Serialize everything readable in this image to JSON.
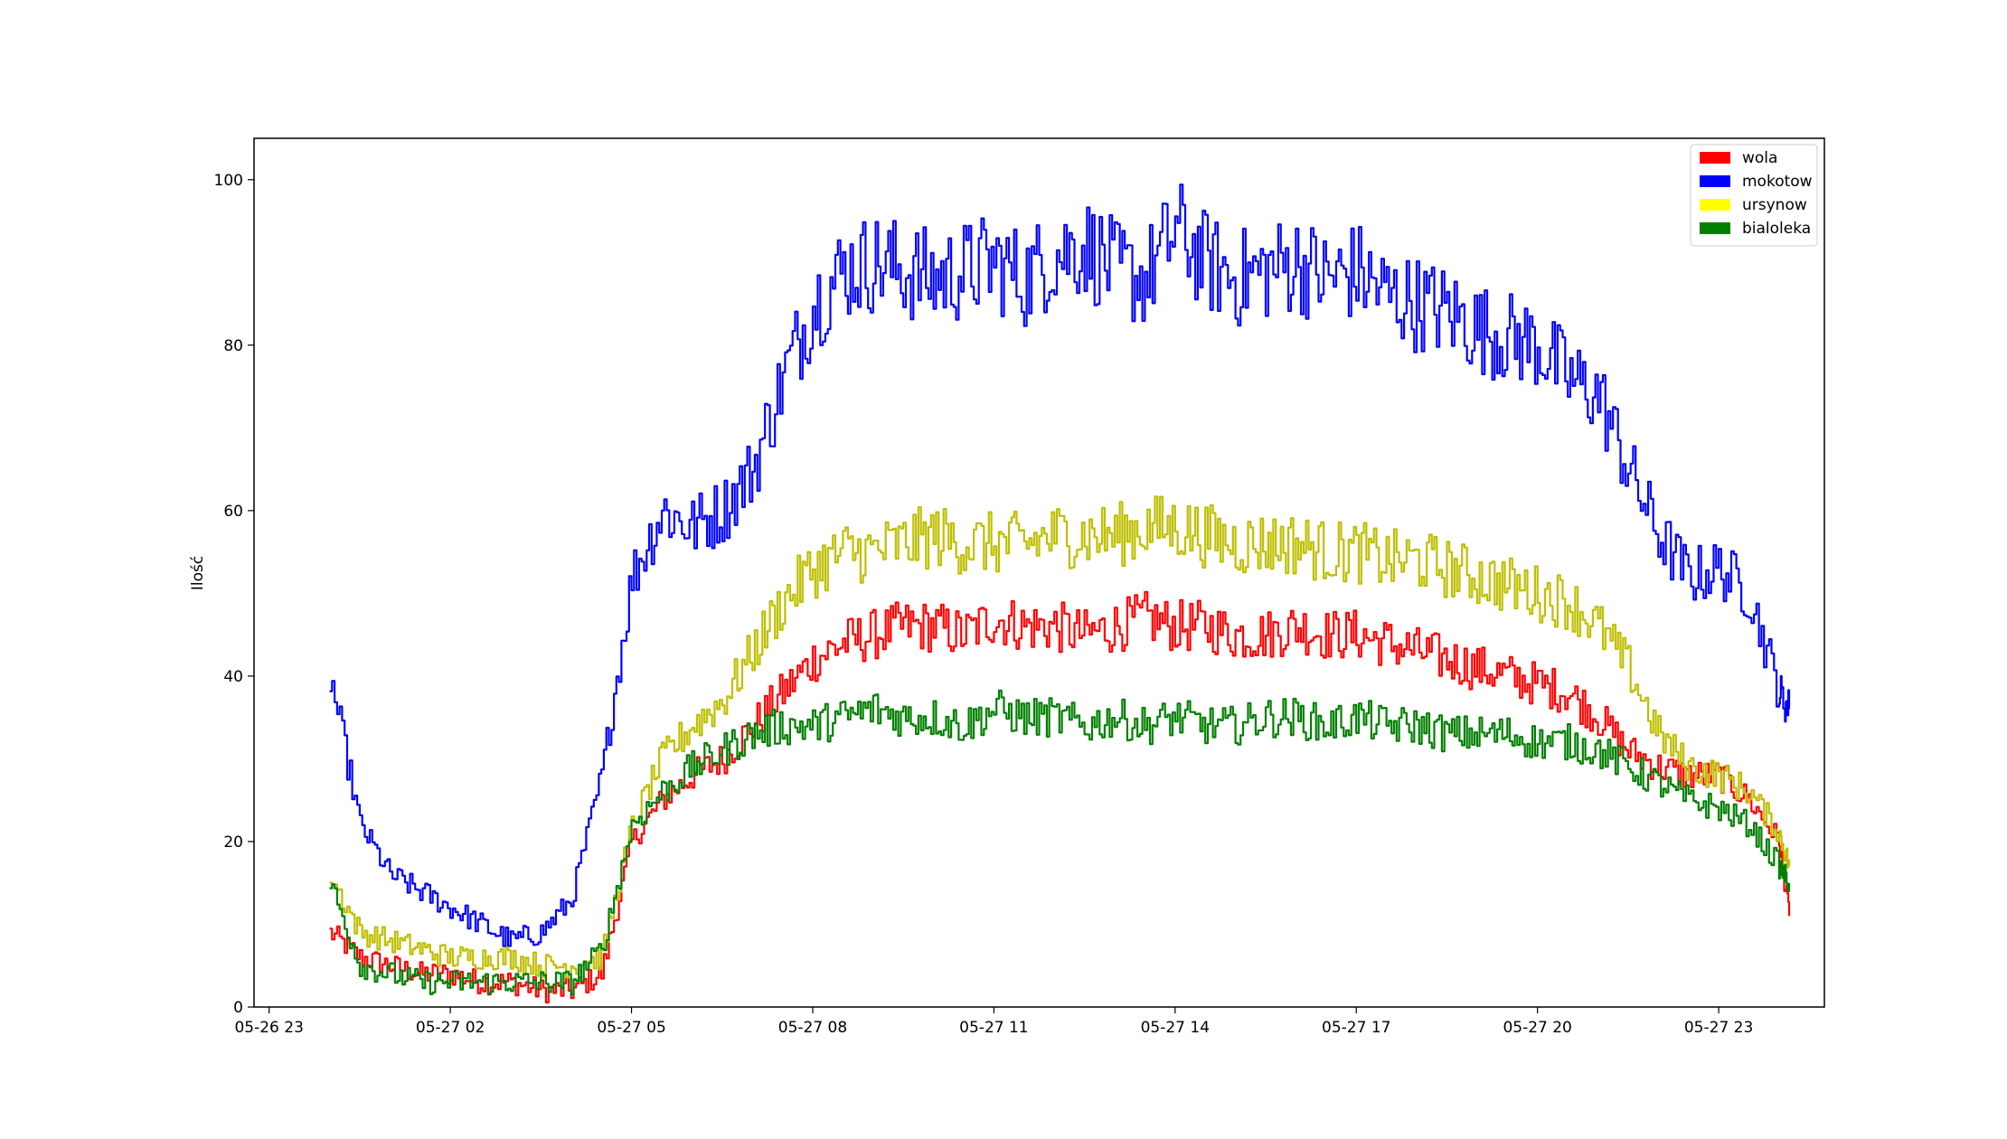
{
  "chart_data": {
    "type": "line",
    "title": "",
    "xlabel": "",
    "ylabel": "Ilość",
    "x_range": [
      "2026-05-26T22:45",
      "2026-05-28T00:45"
    ],
    "ylim": [
      0,
      105
    ],
    "x_ticks": [
      {
        "t": "2026-05-26T23:00",
        "label": "05-26 23"
      },
      {
        "t": "2026-05-27T02:00",
        "label": "05-27 02"
      },
      {
        "t": "2026-05-27T05:00",
        "label": "05-27 05"
      },
      {
        "t": "2026-05-27T08:00",
        "label": "05-27 08"
      },
      {
        "t": "2026-05-27T11:00",
        "label": "05-27 11"
      },
      {
        "t": "2026-05-27T14:00",
        "label": "05-27 14"
      },
      {
        "t": "2026-05-27T17:00",
        "label": "05-27 17"
      },
      {
        "t": "2026-05-27T20:00",
        "label": "05-27 20"
      },
      {
        "t": "2026-05-27T23:00",
        "label": "05-27 23"
      }
    ],
    "y_ticks": [
      0,
      20,
      40,
      60,
      80,
      100
    ],
    "grid": false,
    "legend_position": "top-right",
    "series": [
      {
        "name": "wola",
        "color": "#ff0000",
        "legend_color": "#ff0000",
        "x": [
          "2026-05-27T00:00",
          "2026-05-27T00:30",
          "2026-05-27T01:00",
          "2026-05-27T01:30",
          "2026-05-27T02:00",
          "2026-05-27T02:30",
          "2026-05-27T03:00",
          "2026-05-27T03:30",
          "2026-05-27T04:00",
          "2026-05-27T04:30",
          "2026-05-27T05:00",
          "2026-05-27T05:30",
          "2026-05-27T06:00",
          "2026-05-27T06:30",
          "2026-05-27T07:00",
          "2026-05-27T07:30",
          "2026-05-27T08:00",
          "2026-05-27T08:30",
          "2026-05-27T09:00",
          "2026-05-27T09:30",
          "2026-05-27T10:00",
          "2026-05-27T10:30",
          "2026-05-27T11:00",
          "2026-05-27T11:30",
          "2026-05-27T12:00",
          "2026-05-27T12:30",
          "2026-05-27T13:00",
          "2026-05-27T13:30",
          "2026-05-27T14:00",
          "2026-05-27T14:30",
          "2026-05-27T15:00",
          "2026-05-27T15:30",
          "2026-05-27T16:00",
          "2026-05-27T16:30",
          "2026-05-27T17:00",
          "2026-05-27T17:30",
          "2026-05-27T18:00",
          "2026-05-27T18:30",
          "2026-05-27T19:00",
          "2026-05-27T19:30",
          "2026-05-27T20:00",
          "2026-05-27T20:30",
          "2026-05-27T21:00",
          "2026-05-27T21:30",
          "2026-05-27T22:00",
          "2026-05-27T22:30",
          "2026-05-27T23:00",
          "2026-05-27T23:30",
          "2026-05-28T00:00",
          "2026-05-28T00:10"
        ],
        "values": [
          9,
          6,
          5,
          4,
          4,
          3,
          3,
          2,
          2,
          4,
          20,
          25,
          28,
          30,
          34,
          38,
          42,
          44,
          45,
          46,
          46,
          45,
          47,
          46,
          46,
          45,
          46,
          47,
          46,
          46,
          45,
          45,
          46,
          45,
          45,
          44,
          43,
          42,
          41,
          40,
          39,
          38,
          35,
          31,
          29,
          28,
          28,
          25,
          20,
          11
        ]
      },
      {
        "name": "mokotow",
        "color": "#0000ff",
        "legend_color": "#0000ff",
        "x": [
          "2026-05-27T00:00",
          "2026-05-27T00:30",
          "2026-05-27T01:00",
          "2026-05-27T01:30",
          "2026-05-27T02:00",
          "2026-05-27T02:30",
          "2026-05-27T03:00",
          "2026-05-27T03:30",
          "2026-05-27T04:00",
          "2026-05-27T04:30",
          "2026-05-27T05:00",
          "2026-05-27T05:30",
          "2026-05-27T06:00",
          "2026-05-27T06:30",
          "2026-05-27T07:00",
          "2026-05-27T07:30",
          "2026-05-27T08:00",
          "2026-05-27T08:30",
          "2026-05-27T09:00",
          "2026-05-27T09:30",
          "2026-05-27T10:00",
          "2026-05-27T10:30",
          "2026-05-27T11:00",
          "2026-05-27T11:30",
          "2026-05-27T12:00",
          "2026-05-27T12:30",
          "2026-05-27T13:00",
          "2026-05-27T13:30",
          "2026-05-27T14:00",
          "2026-05-27T14:30",
          "2026-05-27T15:00",
          "2026-05-27T15:30",
          "2026-05-27T16:00",
          "2026-05-27T16:30",
          "2026-05-27T17:00",
          "2026-05-27T17:30",
          "2026-05-27T18:00",
          "2026-05-27T18:30",
          "2026-05-27T19:00",
          "2026-05-27T19:30",
          "2026-05-27T20:00",
          "2026-05-27T20:30",
          "2026-05-27T21:00",
          "2026-05-27T21:30",
          "2026-05-27T22:00",
          "2026-05-27T22:30",
          "2026-05-27T23:00",
          "2026-05-27T23:30",
          "2026-05-28T00:00",
          "2026-05-28T00:10"
        ],
        "values": [
          40,
          22,
          16,
          14,
          12,
          10,
          8,
          9,
          13,
          28,
          52,
          60,
          58,
          60,
          65,
          76,
          85,
          89,
          90,
          89,
          88,
          89,
          90,
          88,
          91,
          92,
          89,
          88,
          94,
          90,
          88,
          89,
          90,
          88,
          89,
          86,
          85,
          84,
          82,
          81,
          80,
          76,
          74,
          65,
          57,
          52,
          53,
          50,
          38,
          36
        ]
      },
      {
        "name": "ursynow",
        "color": "#bfbf00",
        "legend_color": "#ffff00",
        "x": [
          "2026-05-27T00:00",
          "2026-05-27T00:30",
          "2026-05-27T01:00",
          "2026-05-27T01:30",
          "2026-05-27T02:00",
          "2026-05-27T02:30",
          "2026-05-27T03:00",
          "2026-05-27T03:30",
          "2026-05-27T04:00",
          "2026-05-27T04:30",
          "2026-05-27T05:00",
          "2026-05-27T05:30",
          "2026-05-27T06:00",
          "2026-05-27T06:30",
          "2026-05-27T07:00",
          "2026-05-27T07:30",
          "2026-05-27T08:00",
          "2026-05-27T08:30",
          "2026-05-27T09:00",
          "2026-05-27T09:30",
          "2026-05-27T10:00",
          "2026-05-27T10:30",
          "2026-05-27T11:00",
          "2026-05-27T11:30",
          "2026-05-27T12:00",
          "2026-05-27T12:30",
          "2026-05-27T13:00",
          "2026-05-27T13:30",
          "2026-05-27T14:00",
          "2026-05-27T14:30",
          "2026-05-27T15:00",
          "2026-05-27T15:30",
          "2026-05-27T16:00",
          "2026-05-27T16:30",
          "2026-05-27T17:00",
          "2026-05-27T17:30",
          "2026-05-27T18:00",
          "2026-05-27T18:30",
          "2026-05-27T19:00",
          "2026-05-27T19:30",
          "2026-05-27T20:00",
          "2026-05-27T20:30",
          "2026-05-27T21:00",
          "2026-05-27T21:30",
          "2026-05-27T22:00",
          "2026-05-27T22:30",
          "2026-05-27T23:00",
          "2026-05-27T23:30",
          "2026-05-28T00:00",
          "2026-05-28T00:10"
        ],
        "values": [
          16,
          9,
          8,
          7,
          6,
          6,
          6,
          5,
          5,
          6,
          22,
          30,
          34,
          37,
          43,
          49,
          53,
          55,
          55,
          56,
          57,
          56,
          56,
          56,
          57,
          57,
          57,
          58,
          58,
          57,
          56,
          56,
          56,
          55,
          55,
          54,
          54,
          53,
          52,
          51,
          50,
          49,
          46,
          41,
          33,
          29,
          28,
          26,
          21,
          17
        ]
      },
      {
        "name": "bialoleka",
        "color": "#008000",
        "legend_color": "#008000",
        "x": [
          "2026-05-27T00:00",
          "2026-05-27T00:30",
          "2026-05-27T01:00",
          "2026-05-27T01:30",
          "2026-05-27T02:00",
          "2026-05-27T02:30",
          "2026-05-27T03:00",
          "2026-05-27T03:30",
          "2026-05-27T04:00",
          "2026-05-27T04:30",
          "2026-05-27T05:00",
          "2026-05-27T05:30",
          "2026-05-27T06:00",
          "2026-05-27T06:30",
          "2026-05-27T07:00",
          "2026-05-27T07:30",
          "2026-05-27T08:00",
          "2026-05-27T08:30",
          "2026-05-27T09:00",
          "2026-05-27T09:30",
          "2026-05-27T10:00",
          "2026-05-27T10:30",
          "2026-05-27T11:00",
          "2026-05-27T11:30",
          "2026-05-27T12:00",
          "2026-05-27T12:30",
          "2026-05-27T13:00",
          "2026-05-27T13:30",
          "2026-05-27T14:00",
          "2026-05-27T14:30",
          "2026-05-27T15:00",
          "2026-05-27T15:30",
          "2026-05-27T16:00",
          "2026-05-27T16:30",
          "2026-05-27T17:00",
          "2026-05-27T17:30",
          "2026-05-27T18:00",
          "2026-05-27T18:30",
          "2026-05-27T19:00",
          "2026-05-27T19:30",
          "2026-05-27T20:00",
          "2026-05-27T20:30",
          "2026-05-27T21:00",
          "2026-05-27T21:30",
          "2026-05-27T22:00",
          "2026-05-27T22:30",
          "2026-05-27T23:00",
          "2026-05-27T23:30",
          "2026-05-28T00:00",
          "2026-05-28T00:10"
        ],
        "values": [
          15,
          5,
          4,
          3,
          3,
          3,
          3,
          3,
          3,
          7,
          22,
          26,
          29,
          31,
          33,
          34,
          34,
          35,
          36,
          35,
          35,
          34,
          36,
          35,
          35,
          34,
          35,
          34,
          35,
          34,
          34,
          35,
          35,
          34,
          35,
          34,
          34,
          33,
          33,
          33,
          32,
          32,
          31,
          29,
          27,
          25,
          24,
          22,
          17,
          15
        ]
      }
    ]
  }
}
